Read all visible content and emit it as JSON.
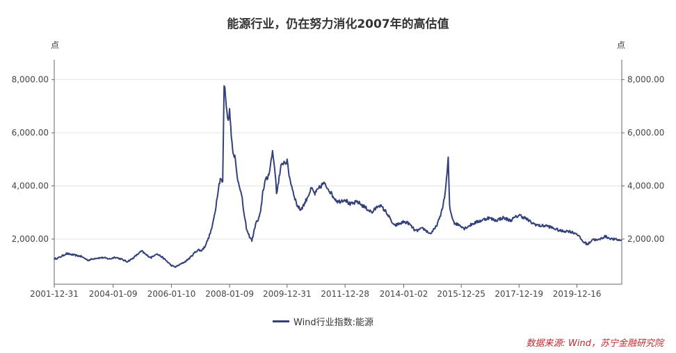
{
  "chart_data": {
    "type": "line",
    "title": "能源行业，仍在努力消化2007年的高估值",
    "ylabel_left": "点",
    "ylabel_right": "点",
    "ylim": [
      300,
      8750
    ],
    "yticks": [
      2000,
      4000,
      6000,
      8000
    ],
    "ytick_labels": [
      "2,000.00",
      "4,000.00",
      "6,000.00",
      "8,000.00"
    ],
    "xlim": [
      "2001-12-31",
      "2021-06-30"
    ],
    "xtick_labels": [
      "2001-12-31",
      "2004-01-09",
      "2006-01-10",
      "2008-01-09",
      "2009-12-31",
      "2011-12-28",
      "2014-01-02",
      "2015-12-25",
      "2017-12-19",
      "2019-12-16"
    ],
    "grid": true,
    "legend_position": "bottom",
    "series": [
      {
        "name": "Wind行业指数:能源",
        "color": "#33407a",
        "x": [
          "2001-12-31",
          "2002-03-01",
          "2002-06-01",
          "2002-09-01",
          "2002-12-01",
          "2003-03-01",
          "2003-06-01",
          "2003-09-01",
          "2003-12-01",
          "2004-02-01",
          "2004-04-15",
          "2004-07-01",
          "2004-09-01",
          "2004-11-01",
          "2005-01-01",
          "2005-03-01",
          "2005-05-01",
          "2005-07-01",
          "2005-09-01",
          "2005-11-01",
          "2006-01-10",
          "2006-03-01",
          "2006-05-01",
          "2006-07-01",
          "2006-09-01",
          "2006-11-01",
          "2006-12-15",
          "2007-01-15",
          "2007-03-01",
          "2007-04-15",
          "2007-05-20",
          "2007-06-15",
          "2007-07-15",
          "2007-08-15",
          "2007-09-15",
          "2007-10-15",
          "2007-11-01",
          "2007-11-20",
          "2007-12-15",
          "2008-01-09",
          "2008-02-15",
          "2008-03-15",
          "2008-04-15",
          "2008-05-15",
          "2008-06-15",
          "2008-07-15",
          "2008-08-15",
          "2008-09-15",
          "2008-10-15",
          "2008-11-05",
          "2008-12-01",
          "2009-01-01",
          "2009-02-01",
          "2009-03-01",
          "2009-04-01",
          "2009-05-01",
          "2009-06-01",
          "2009-07-01",
          "2009-08-01",
          "2009-08-20",
          "2009-09-15",
          "2009-10-15",
          "2009-11-15",
          "2009-12-31",
          "2010-02-01",
          "2010-03-15",
          "2010-05-01",
          "2010-06-15",
          "2010-08-01",
          "2010-09-15",
          "2010-11-01",
          "2010-12-15",
          "2011-02-01",
          "2011-04-01",
          "2011-06-01",
          "2011-08-01",
          "2011-10-01",
          "2011-12-28",
          "2012-03-01",
          "2012-06-01",
          "2012-09-01",
          "2012-12-01",
          "2013-03-01",
          "2013-06-01",
          "2013-09-01",
          "2013-12-01",
          "2014-01-02",
          "2014-03-01",
          "2014-06-01",
          "2014-09-01",
          "2014-12-01",
          "2015-02-01",
          "2015-04-01",
          "2015-05-20",
          "2015-06-08",
          "2015-07-01",
          "2015-07-15",
          "2015-08-01",
          "2015-08-25",
          "2015-10-01",
          "2015-12-25",
          "2016-02-01",
          "2016-04-01",
          "2016-06-01",
          "2016-09-01",
          "2016-12-01",
          "2017-03-01",
          "2017-06-01",
          "2017-09-01",
          "2017-12-19",
          "2018-03-01",
          "2018-06-01",
          "2018-09-01",
          "2018-12-01",
          "2019-03-01",
          "2019-06-01",
          "2019-09-01",
          "2019-12-16",
          "2020-03-01",
          "2020-05-01",
          "2020-07-01",
          "2020-09-01",
          "2020-12-01",
          "2021-03-01",
          "2021-06-30"
        ],
        "y": [
          1250,
          1300,
          1450,
          1400,
          1350,
          1200,
          1280,
          1300,
          1250,
          1320,
          1250,
          1150,
          1250,
          1400,
          1550,
          1400,
          1300,
          1450,
          1350,
          1200,
          1000,
          950,
          1050,
          1150,
          1300,
          1500,
          1600,
          1550,
          1700,
          2000,
          2300,
          2600,
          3100,
          3800,
          4300,
          4100,
          7800,
          7400,
          6500,
          6800,
          5400,
          5100,
          4300,
          4000,
          3500,
          2800,
          2300,
          2100,
          1950,
          2200,
          2600,
          2700,
          3000,
          3800,
          4200,
          4300,
          4700,
          5300,
          4600,
          3700,
          4200,
          4700,
          4900,
          4900,
          4300,
          3800,
          3300,
          3100,
          3300,
          3600,
          3900,
          3700,
          3900,
          4100,
          3900,
          3600,
          3400,
          3500,
          3300,
          3400,
          3200,
          3000,
          3300,
          3000,
          2500,
          2600,
          2650,
          2600,
          2300,
          2400,
          2200,
          2400,
          2800,
          3400,
          3800,
          4500,
          5000,
          3200,
          2900,
          2600,
          2500,
          2400,
          2500,
          2600,
          2700,
          2800,
          2700,
          2800,
          2700,
          2900,
          2800,
          2600,
          2500,
          2500,
          2400,
          2300,
          2300,
          2200,
          1900,
          1800,
          2000,
          1950,
          2100,
          2000,
          1950
        ]
      }
    ]
  },
  "legend": {
    "label": "Wind行业指数:能源"
  },
  "source": "数据来源: Wind，苏宁金融研究院"
}
